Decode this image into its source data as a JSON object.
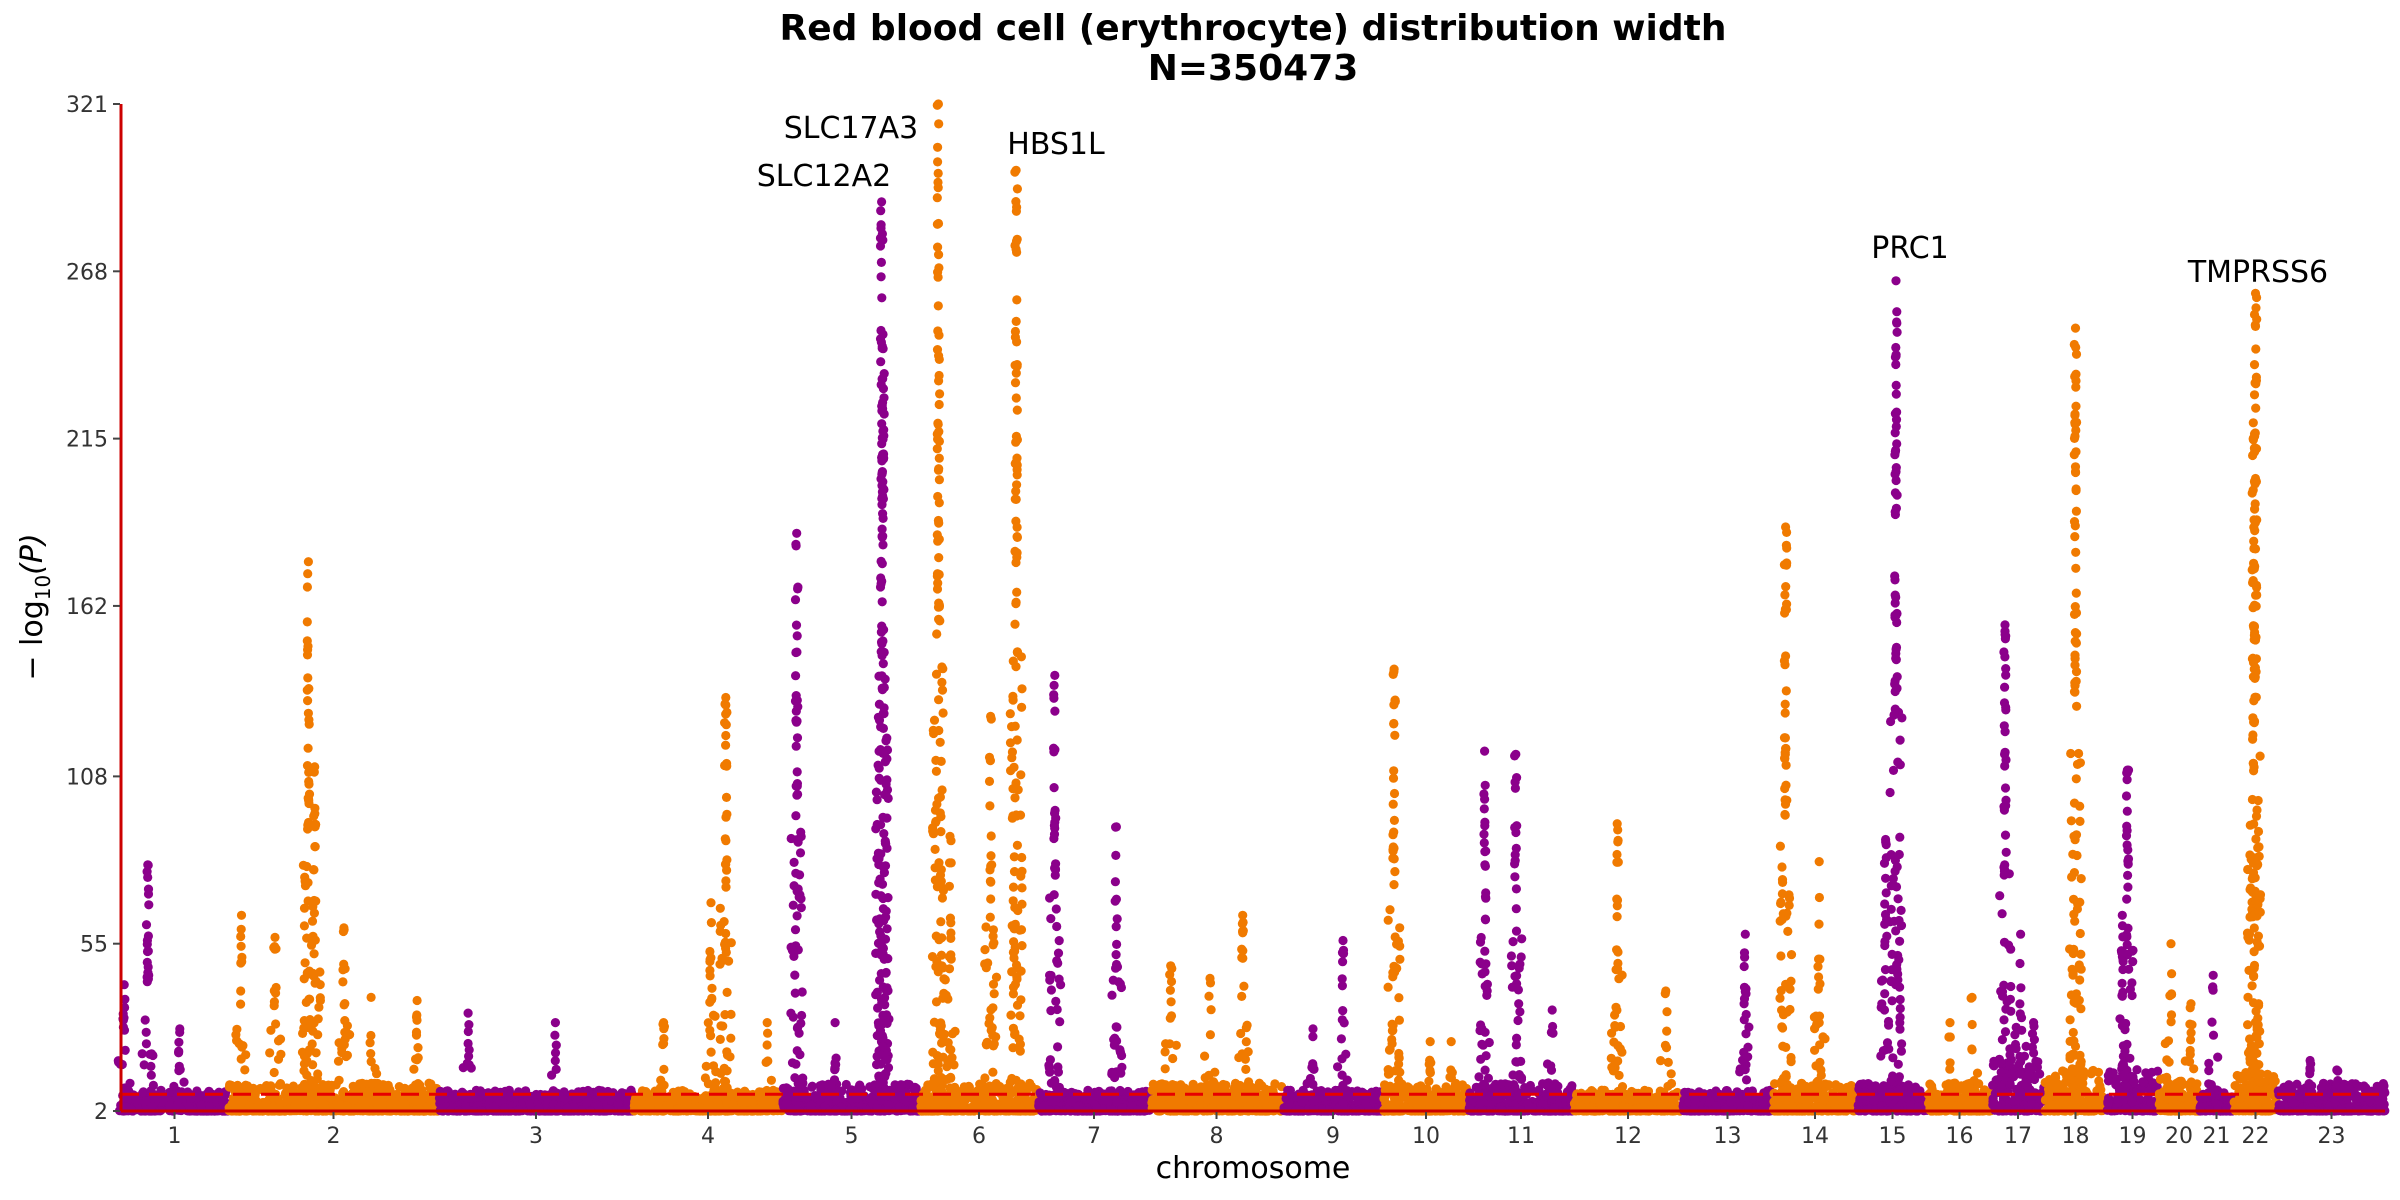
{
  "chart_data": {
    "type": "scatter",
    "title": "Red blood cell (erythrocyte) distribution width",
    "subtitle": "N=350473",
    "xlabel": "chromosome",
    "ylabel_main": "− log",
    "ylabel_sub": "10",
    "ylabel_arg": "(P)",
    "ylim": [
      2,
      321
    ],
    "yticks": [
      2,
      55,
      108,
      162,
      215,
      268,
      321
    ],
    "significance_line": 7.3,
    "grid": false,
    "colors": {
      "odd": "#8b008b",
      "even": "#f07a00",
      "threshold": "#e60000",
      "axis": "#cc0000"
    },
    "chromosomes": [
      {
        "label": "1",
        "bg": 3,
        "peaks": [
          [
            0.25,
            80
          ],
          [
            0.03,
            42
          ],
          [
            0.55,
            28
          ]
        ]
      },
      {
        "label": "2",
        "bg": 4,
        "peaks": [
          [
            0.06,
            64
          ],
          [
            0.22,
            57
          ],
          [
            0.38,
            176
          ],
          [
            0.41,
            111
          ],
          [
            0.55,
            60
          ],
          [
            0.68,
            38
          ],
          [
            0.9,
            37
          ]
        ]
      },
      {
        "label": "3",
        "bg": 3,
        "peaks": [
          [
            0.15,
            33
          ],
          [
            0.6,
            30
          ]
        ]
      },
      {
        "label": "4",
        "bg": 3,
        "peaks": [
          [
            0.2,
            30
          ],
          [
            0.52,
            68
          ],
          [
            0.62,
            133
          ],
          [
            0.9,
            30
          ]
        ]
      },
      {
        "label": "5",
        "bg": 4,
        "peaks": [
          [
            0.1,
            185
          ],
          [
            0.38,
            30
          ],
          [
            0.72,
            290
          ],
          [
            0.73,
            248
          ]
        ]
      },
      {
        "label": "6",
        "bg": 4,
        "peaks": [
          [
            0.15,
            321
          ],
          [
            0.25,
            89
          ],
          [
            0.6,
            127
          ],
          [
            0.82,
            300
          ]
        ]
      },
      {
        "label": "7",
        "bg": 3,
        "peaks": [
          [
            0.15,
            140
          ],
          [
            0.7,
            92
          ]
        ]
      },
      {
        "label": "8",
        "bg": 4,
        "peaks": [
          [
            0.15,
            48
          ],
          [
            0.45,
            44
          ],
          [
            0.7,
            64
          ]
        ]
      },
      {
        "label": "9",
        "bg": 3,
        "peaks": [
          [
            0.3,
            28
          ],
          [
            0.6,
            56
          ]
        ]
      },
      {
        "label": "10",
        "bg": 4,
        "peaks": [
          [
            0.12,
            142
          ],
          [
            0.55,
            24
          ],
          [
            0.8,
            24
          ]
        ]
      },
      {
        "label": "11",
        "bg": 4,
        "peaks": [
          [
            0.15,
            116
          ],
          [
            0.45,
            115
          ],
          [
            0.8,
            34
          ]
        ]
      },
      {
        "label": "12",
        "bg": 3,
        "peaks": [
          [
            0.4,
            93
          ],
          [
            0.85,
            40
          ]
        ]
      },
      {
        "label": "13",
        "bg": 3,
        "peaks": [
          [
            0.7,
            58
          ]
        ]
      },
      {
        "label": "14",
        "bg": 4,
        "peaks": [
          [
            0.15,
            187
          ],
          [
            0.55,
            81
          ]
        ]
      },
      {
        "label": "15",
        "bg": 4,
        "peaks": [
          [
            0.55,
            265
          ],
          [
            0.4,
            88
          ]
        ]
      },
      {
        "label": "16",
        "bg": 4,
        "peaks": [
          [
            0.35,
            30
          ],
          [
            0.7,
            38
          ]
        ]
      },
      {
        "label": "17",
        "bg": 8,
        "peaks": [
          [
            0.25,
            156
          ],
          [
            0.55,
            58
          ],
          [
            0.8,
            30
          ]
        ]
      },
      {
        "label": "18",
        "bg": 6,
        "peaks": [
          [
            0.5,
            250
          ]
        ]
      },
      {
        "label": "19",
        "bg": 6,
        "peaks": [
          [
            0.4,
            110
          ],
          [
            0.3,
            64
          ]
        ]
      },
      {
        "label": "20",
        "bg": 5,
        "peaks": [
          [
            0.3,
            55
          ],
          [
            0.8,
            36
          ]
        ]
      },
      {
        "label": "21",
        "bg": 4,
        "peaks": [
          [
            0.4,
            45
          ]
        ]
      },
      {
        "label": "22",
        "bg": 6,
        "peaks": [
          [
            0.5,
            261
          ],
          [
            0.45,
            220
          ]
        ]
      },
      {
        "label": "23",
        "bg": 4,
        "peaks": [
          [
            0.3,
            18
          ],
          [
            0.55,
            15
          ]
        ]
      }
    ],
    "annotations": [
      {
        "text": "SLC17A3"
      },
      {
        "text": "SLC12A2"
      },
      {
        "text": "HBS1L"
      },
      {
        "text": "PRC1"
      },
      {
        "text": "TMPRSS6"
      }
    ]
  }
}
